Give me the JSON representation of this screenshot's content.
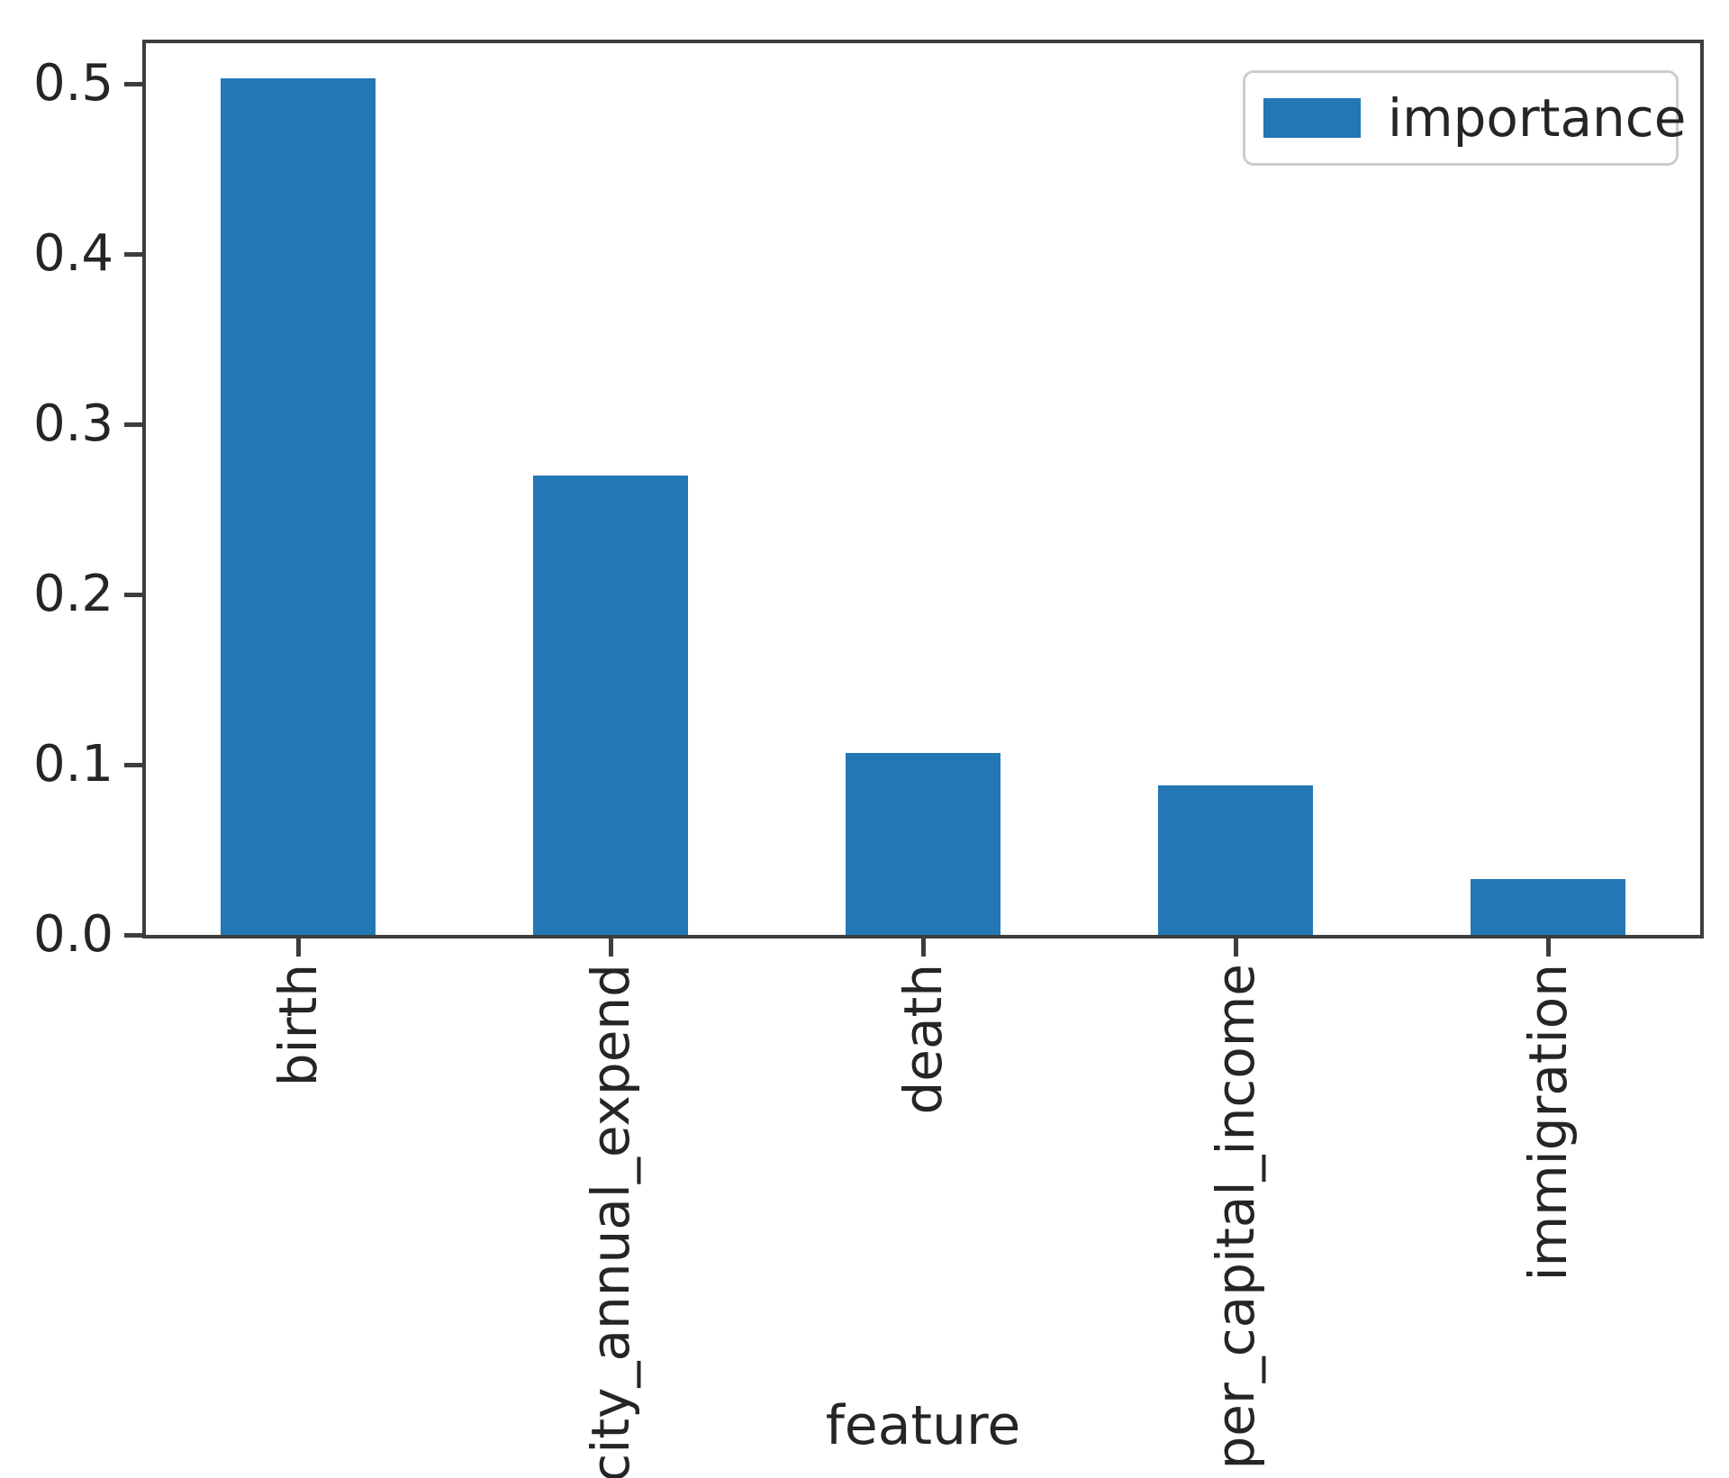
{
  "chart_data": {
    "type": "bar",
    "categories": [
      "birth",
      "city_annual_expend",
      "death",
      "per_capital_income",
      "immigration"
    ],
    "series": [
      {
        "name": "importance",
        "values": [
          0.503,
          0.27,
          0.107,
          0.088,
          0.033
        ]
      }
    ],
    "title": "",
    "xlabel": "feature",
    "ylabel": "",
    "ylim": [
      0,
      0.526
    ],
    "yticks": [
      0.0,
      0.1,
      0.2,
      0.3,
      0.4,
      0.5
    ],
    "ytick_labels": [
      "0.0",
      "0.1",
      "0.2",
      "0.3",
      "0.4",
      "0.5"
    ],
    "grid": false,
    "legend": {
      "label": "importance",
      "position": "upper right"
    },
    "bar_color": "#2277b4"
  },
  "colors": {
    "bar": "#2277b4",
    "spine": "#3d3d3d",
    "text": "#252525",
    "legend_border": "#cccccc",
    "background": "#ffffff"
  }
}
